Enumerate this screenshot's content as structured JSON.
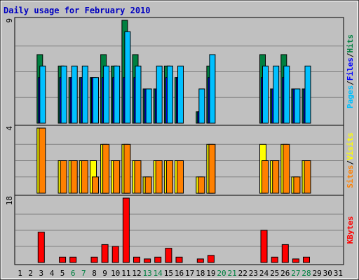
{
  "chart_data": {
    "type": "bar",
    "title": "Daily usage for February 2010",
    "x": [
      "1",
      "2",
      "3",
      "4",
      "5",
      "6",
      "7",
      "8",
      "9",
      "10",
      "11",
      "12",
      "13",
      "14",
      "15",
      "16",
      "17",
      "18",
      "19",
      "20",
      "21",
      "22",
      "23",
      "24",
      "25",
      "26",
      "27",
      "28",
      "29",
      "30",
      "31"
    ],
    "weekend_days": [
      "6",
      "7",
      "13",
      "14",
      "20",
      "21",
      "27",
      "28"
    ],
    "panels": [
      {
        "id": "hits",
        "ymax_label": "9",
        "ylim": [
          0,
          9
        ],
        "right_label": [
          "Pages",
          "/",
          "Files",
          "/",
          "Hits"
        ],
        "right_label_colors": [
          "#00c0ff",
          "#000000",
          "#0000ff",
          "#000000",
          "#008040"
        ],
        "series": [
          {
            "name": "Hits",
            "color": "#008040",
            "values": [
              0,
              0,
              6,
              0,
              5,
              4,
              4,
              4,
              6,
              5,
              9,
              6,
              3,
              3,
              5,
              4,
              0,
              1,
              5,
              0,
              0,
              0,
              0,
              6,
              3,
              6,
              3,
              3,
              0,
              0,
              0
            ]
          },
          {
            "name": "Files",
            "color": "#0000ff",
            "values": [
              0,
              0,
              4,
              0,
              4,
              4,
              4,
              4,
              4,
              4,
              4,
              4,
              3,
              3,
              4,
              4,
              0,
              1,
              4,
              0,
              0,
              0,
              0,
              4,
              3,
              4,
              3,
              3,
              0,
              0,
              0
            ]
          },
          {
            "name": "Pages",
            "color": "#00c0ff",
            "values": [
              0,
              0,
              5,
              0,
              5,
              5,
              5,
              4,
              5,
              5,
              8,
              5,
              3,
              5,
              5,
              5,
              0,
              3,
              6,
              0,
              0,
              0,
              0,
              5,
              5,
              5,
              3,
              5,
              0,
              0,
              0
            ]
          }
        ]
      },
      {
        "id": "visits",
        "ymax_label": "4",
        "ylim": [
          0,
          4
        ],
        "right_label": [
          "Sites",
          "/",
          "Visits"
        ],
        "right_label_colors": [
          "#ff8000",
          "#000000",
          "#ffff00"
        ],
        "series": [
          {
            "name": "Visits",
            "color": "#ffff00",
            "values": [
              0,
              0,
              4,
              0,
              2,
              2,
              2,
              2,
              3,
              2,
              3,
              2,
              1,
              2,
              2,
              2,
              0,
              1,
              3,
              0,
              0,
              0,
              0,
              3,
              2,
              3,
              1,
              2,
              0,
              0,
              0
            ]
          },
          {
            "name": "Sites",
            "color": "#ff8000",
            "values": [
              0,
              0,
              4,
              0,
              2,
              2,
              2,
              1,
              3,
              2,
              3,
              2,
              1,
              2,
              2,
              2,
              0,
              1,
              3,
              0,
              0,
              0,
              0,
              2,
              2,
              3,
              1,
              2,
              0,
              0,
              0
            ]
          }
        ]
      },
      {
        "id": "kbytes",
        "ymax_label": "18",
        "ylim": [
          0,
          18
        ],
        "right_label": [
          "KBytes"
        ],
        "right_label_colors": [
          "#ff0000"
        ],
        "series": [
          {
            "name": "KBytes",
            "color": "#ff0000",
            "values": [
              0,
              0,
              8.5,
              0,
              1.5,
              1.5,
              0,
              1.5,
              5,
              4.5,
              18,
              1.5,
              1,
              1.5,
              4,
              1.5,
              0,
              1,
              2,
              0,
              0,
              0,
              0,
              9,
              1.5,
              5,
              1,
              1.5,
              0,
              0,
              0
            ]
          }
        ]
      }
    ],
    "grid": true
  }
}
